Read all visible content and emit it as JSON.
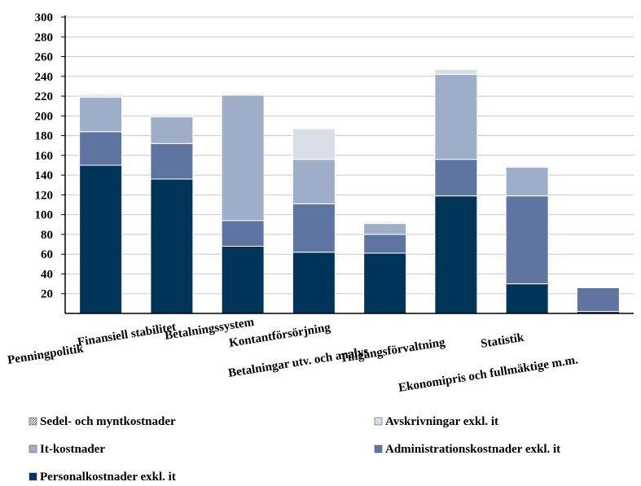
{
  "chart_data": {
    "type": "bar",
    "stacked": true,
    "categories": [
      "Penningpolitik",
      "Finansiell stabilitet",
      "Betalningssystem",
      "Kontantförsörjning",
      "Betalningar utv. och analys",
      "Tillgångsförvaltning",
      "Statistik",
      "Ekonomipris och fullmäktige m.m."
    ],
    "series": [
      {
        "name": "Personalkostnader exkl. it",
        "color": "#003559",
        "values": [
          150,
          136,
          68,
          62,
          61,
          119,
          30,
          2
        ]
      },
      {
        "name": "Administrationskostnader exkl. it",
        "color": "#5e75a2",
        "values": [
          34,
          36,
          26,
          49,
          19,
          37,
          89,
          24
        ]
      },
      {
        "name": "It-kostnader",
        "color": "#9eaec8",
        "values": [
          35,
          27,
          127,
          45,
          11,
          86,
          29,
          0
        ]
      },
      {
        "name": "Avskrivningar exkl. it",
        "color": "#d9dde8",
        "values": [
          2,
          2,
          1,
          31,
          1,
          5,
          1,
          0
        ]
      },
      {
        "name": "Sedel- och myntkostnader",
        "color": "#bbbbbb",
        "values": [
          1,
          1,
          1,
          0,
          1,
          0,
          0,
          0
        ]
      }
    ],
    "ylim": [
      0,
      300
    ],
    "yticks": [
      "20",
      "40",
      "60",
      "80",
      "100",
      "120",
      "140",
      "160",
      "180",
      "200",
      "220",
      "240",
      "260",
      "280",
      "300"
    ],
    "ytick_values": [
      20,
      40,
      60,
      80,
      100,
      120,
      140,
      160,
      180,
      200,
      220,
      240,
      260,
      280,
      300
    ],
    "grid": true,
    "legend": {
      "placement": "bottom",
      "entries": [
        "Sedel- och myntkostnader",
        "Avskrivningar exkl. it",
        "It-kostnader",
        "Administrationskostnader exkl. it",
        "Personalkostnader exkl. it"
      ]
    }
  }
}
